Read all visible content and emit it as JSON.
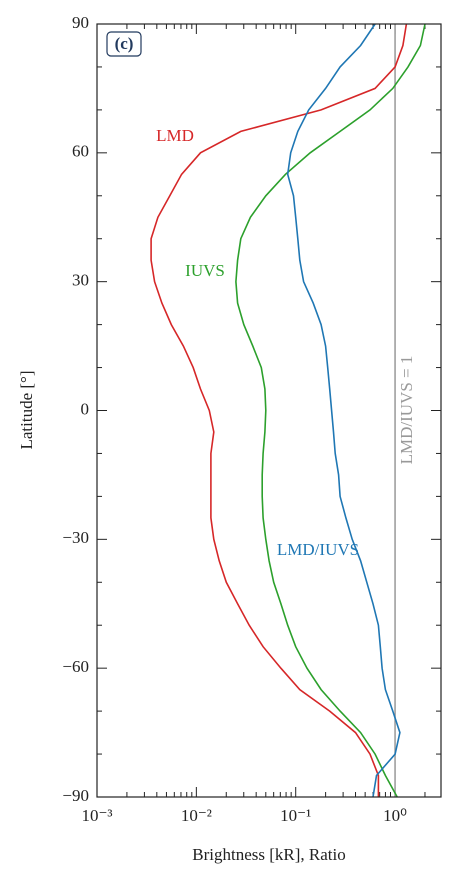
{
  "chart_data": {
    "type": "line",
    "panel_label": "(c)",
    "x_label": "Brightness [kR], Ratio",
    "y_label": "Latitude [°]",
    "log_x": true,
    "xlim": [
      0.001,
      2.9
    ],
    "xticks": [
      {
        "value": 0.001,
        "label": "10⁻³"
      },
      {
        "value": 0.01,
        "label": "10⁻²"
      },
      {
        "value": 0.1,
        "label": "10⁻¹"
      },
      {
        "value": 1,
        "label": "10⁰"
      }
    ],
    "ylim": [
      -90,
      90
    ],
    "yticks": [
      {
        "value": -90,
        "label": "−90"
      },
      {
        "value": -60,
        "label": "−60"
      },
      {
        "value": -30,
        "label": "−30"
      },
      0,
      30,
      60,
      90
    ],
    "reference_line": {
      "value": 1,
      "label": "LMD/IUVS = 1",
      "color": "#999999"
    },
    "y": [
      -90,
      -85,
      -80,
      -75,
      -70,
      -65,
      -60,
      -55,
      -50,
      -45,
      -40,
      -35,
      -30,
      -25,
      -20,
      -15,
      -10,
      -5,
      0,
      5,
      10,
      15,
      20,
      25,
      30,
      35,
      40,
      45,
      50,
      55,
      60,
      65,
      70,
      75,
      80,
      85,
      90
    ],
    "series": [
      {
        "name": "LMD",
        "color": "#d62728",
        "values": [
          0.68,
          0.68,
          0.56,
          0.4,
          0.22,
          0.11,
          0.071,
          0.047,
          0.034,
          0.026,
          0.02,
          0.017,
          0.015,
          0.014,
          0.014,
          0.014,
          0.014,
          0.015,
          0.0135,
          0.011,
          0.0093,
          0.0074,
          0.0056,
          0.0045,
          0.0038,
          0.0035,
          0.0035,
          0.0041,
          0.0054,
          0.0071,
          0.011,
          0.028,
          0.18,
          0.63,
          1.0,
          1.2,
          1.3
        ]
      },
      {
        "name": "IUVS",
        "color": "#2ca02c",
        "values": [
          1.05,
          0.8,
          0.63,
          0.45,
          0.28,
          0.18,
          0.13,
          0.1,
          0.083,
          0.071,
          0.06,
          0.054,
          0.05,
          0.047,
          0.046,
          0.046,
          0.047,
          0.049,
          0.05,
          0.049,
          0.045,
          0.037,
          0.03,
          0.026,
          0.025,
          0.026,
          0.028,
          0.035,
          0.05,
          0.079,
          0.14,
          0.28,
          0.56,
          0.95,
          1.35,
          1.8,
          2.0
        ]
      },
      {
        "name": "LMD/IUVS",
        "color": "#1f77b4",
        "values": [
          0.6,
          0.65,
          1.0,
          1.12,
          0.95,
          0.8,
          0.74,
          0.71,
          0.68,
          0.6,
          0.52,
          0.45,
          0.37,
          0.32,
          0.28,
          0.27,
          0.25,
          0.24,
          0.23,
          0.22,
          0.21,
          0.2,
          0.18,
          0.15,
          0.12,
          0.11,
          0.105,
          0.1,
          0.095,
          0.083,
          0.089,
          0.105,
          0.135,
          0.2,
          0.28,
          0.45,
          0.63
        ]
      }
    ]
  }
}
